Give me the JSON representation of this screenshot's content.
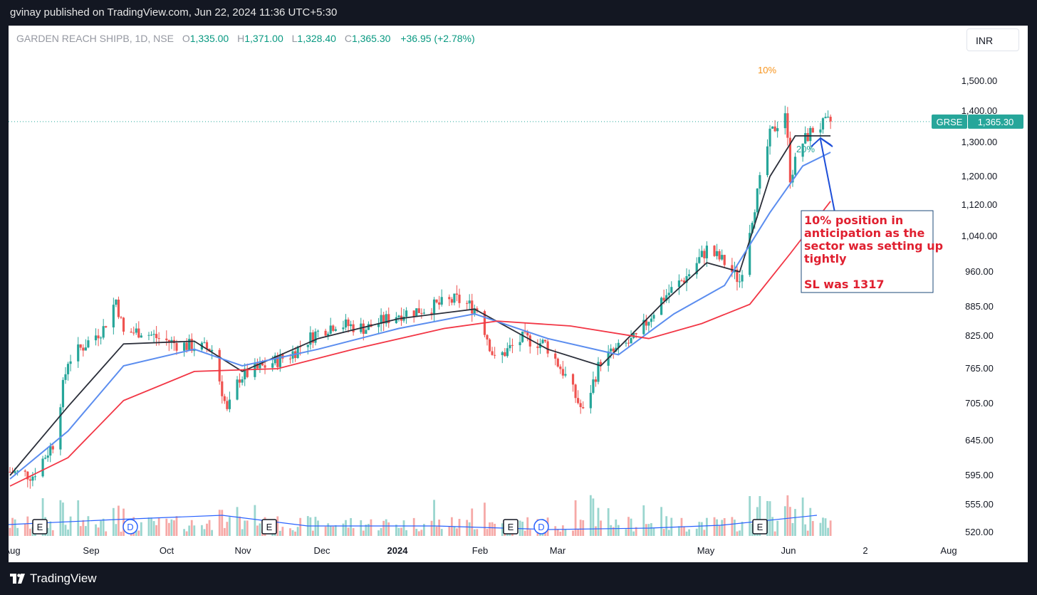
{
  "header": {
    "text": "gvinay published on TradingView.com, Jun 22, 2024 11:36 UTC+5:30"
  },
  "legend": {
    "symbol": "GARDEN REACH SHIPB, 1D, NSE",
    "o_label": "O",
    "o": "1,335.00",
    "h_label": "H",
    "h": "1,371.00",
    "l_label": "L",
    "l": "1,328.40",
    "c_label": "C",
    "c": "1,365.30",
    "change": "+36.95 (+2.78%)"
  },
  "currency": "INR",
  "price_tag": {
    "ticker": "GRSE",
    "price": "1,365.30",
    "value": 1365.3
  },
  "colors": {
    "up": "#26a69a",
    "down": "#ef5350",
    "ema_fast": "#2a2e39",
    "ema_mid": "#5b8def",
    "ema_slow": "#f23645",
    "annotation_border": "#1e4a7a",
    "annotation_text": "#e02030",
    "arrow": "#1d4ed8"
  },
  "annotation": {
    "lines": [
      "10% position in",
      "anticipation as the",
      "sector was setting up",
      "tightly",
      "",
      "SL was 1317"
    ]
  },
  "markers": [
    {
      "text": "10%",
      "color": "#f7931a"
    },
    {
      "text": "20%",
      "color": "#26a69a"
    }
  ],
  "events": [
    "E",
    "D",
    "E",
    "E",
    "D",
    "E"
  ],
  "footer": {
    "brand": "TradingView"
  },
  "chart_data": {
    "type": "candlestick",
    "title": "GARDEN REACH SHIPB, 1D, NSE",
    "y_ticks": [
      1500,
      1400,
      1300,
      1200,
      1120,
      1040,
      960,
      885,
      825,
      765,
      705,
      645,
      595,
      555,
      520
    ],
    "y_tick_labels": [
      "1,500.00",
      "1,400.00",
      "1,300.00",
      "1,200.00",
      "1,120.00",
      "1,040.00",
      "960.00",
      "885.00",
      "825.00",
      "765.00",
      "705.00",
      "645.00",
      "595.00",
      "555.00",
      "520.00"
    ],
    "y_scale": "log",
    "x_tick_labels": [
      "Aug",
      "Sep",
      "Oct",
      "Nov",
      "Dec",
      "2024",
      "Feb",
      "Mar",
      "May",
      "Jun",
      "2",
      "Aug"
    ],
    "series": [
      {
        "name": "price",
        "points": [
          [
            "2023-08-01",
            600
          ],
          [
            "2023-08-10",
            595
          ],
          [
            "2023-08-18",
            640
          ],
          [
            "2023-08-24",
            780
          ],
          [
            "2023-08-31",
            810
          ],
          [
            "2023-09-07",
            840
          ],
          [
            "2023-09-12",
            900
          ],
          [
            "2023-09-15",
            830
          ],
          [
            "2023-09-22",
            835
          ],
          [
            "2023-09-29",
            820
          ],
          [
            "2023-10-06",
            810
          ],
          [
            "2023-10-13",
            805
          ],
          [
            "2023-10-20",
            800
          ],
          [
            "2023-10-26",
            690
          ],
          [
            "2023-10-31",
            750
          ],
          [
            "2023-11-10",
            770
          ],
          [
            "2023-11-20",
            790
          ],
          [
            "2023-11-30",
            830
          ],
          [
            "2023-12-08",
            850
          ],
          [
            "2023-12-20",
            840
          ],
          [
            "2024-01-02",
            870
          ],
          [
            "2024-01-12",
            880
          ],
          [
            "2024-01-25",
            900
          ],
          [
            "2024-02-02",
            880
          ],
          [
            "2024-02-09",
            780
          ],
          [
            "2024-02-20",
            820
          ],
          [
            "2024-02-29",
            810
          ],
          [
            "2024-03-07",
            760
          ],
          [
            "2024-03-15",
            690
          ],
          [
            "2024-03-22",
            780
          ],
          [
            "2024-04-05",
            820
          ],
          [
            "2024-04-15",
            900
          ],
          [
            "2024-04-25",
            950
          ],
          [
            "2024-05-03",
            1010
          ],
          [
            "2024-05-10",
            980
          ],
          [
            "2024-05-16",
            940
          ],
          [
            "2024-05-23",
            1150
          ],
          [
            "2024-05-28",
            1320
          ],
          [
            "2024-06-03",
            1400
          ],
          [
            "2024-06-05",
            1200
          ],
          [
            "2024-06-10",
            1300
          ],
          [
            "2024-06-14",
            1340
          ],
          [
            "2024-06-21",
            1365.3
          ]
        ]
      },
      {
        "name": "",
        "points": [
          [
            "2023-08-01",
            595
          ],
          [
            "2023-08-24",
            700
          ],
          [
            "2023-09-15",
            810
          ],
          [
            "2023-10-13",
            815
          ],
          [
            "2023-11-01",
            760
          ],
          [
            "2023-12-01",
            820
          ],
          [
            "2024-01-02",
            860
          ],
          [
            "2024-02-01",
            880
          ],
          [
            "2024-03-01",
            800
          ],
          [
            "2024-03-22",
            770
          ],
          [
            "2024-04-15",
            890
          ],
          [
            "2024-05-03",
            980
          ],
          [
            "2024-05-16",
            960
          ],
          [
            "2024-05-28",
            1200
          ],
          [
            "2024-06-07",
            1320
          ],
          [
            "2024-06-21",
            1320
          ]
        ]
      },
      {
        "name": "",
        "points": [
          [
            "2023-08-01",
            590
          ],
          [
            "2023-08-24",
            660
          ],
          [
            "2023-09-15",
            770
          ],
          [
            "2023-10-13",
            800
          ],
          [
            "2023-11-01",
            770
          ],
          [
            "2023-12-01",
            800
          ],
          [
            "2024-01-02",
            840
          ],
          [
            "2024-02-01",
            870
          ],
          [
            "2024-03-01",
            820
          ],
          [
            "2024-03-29",
            790
          ],
          [
            "2024-04-20",
            870
          ],
          [
            "2024-05-10",
            930
          ],
          [
            "2024-05-28",
            1100
          ],
          [
            "2024-06-10",
            1230
          ],
          [
            "2024-06-21",
            1270
          ]
        ]
      },
      {
        "name": "",
        "points": [
          [
            "2023-08-01",
            580
          ],
          [
            "2023-08-24",
            620
          ],
          [
            "2023-09-15",
            710
          ],
          [
            "2023-10-13",
            760
          ],
          [
            "2023-11-15",
            765
          ],
          [
            "2023-12-15",
            800
          ],
          [
            "2024-01-20",
            840
          ],
          [
            "2024-02-10",
            855
          ],
          [
            "2024-03-10",
            845
          ],
          [
            "2024-04-10",
            820
          ],
          [
            "2024-05-01",
            850
          ],
          [
            "2024-05-20",
            890
          ],
          [
            "2024-06-05",
            1000
          ],
          [
            "2024-06-21",
            1130
          ]
        ]
      }
    ]
  }
}
